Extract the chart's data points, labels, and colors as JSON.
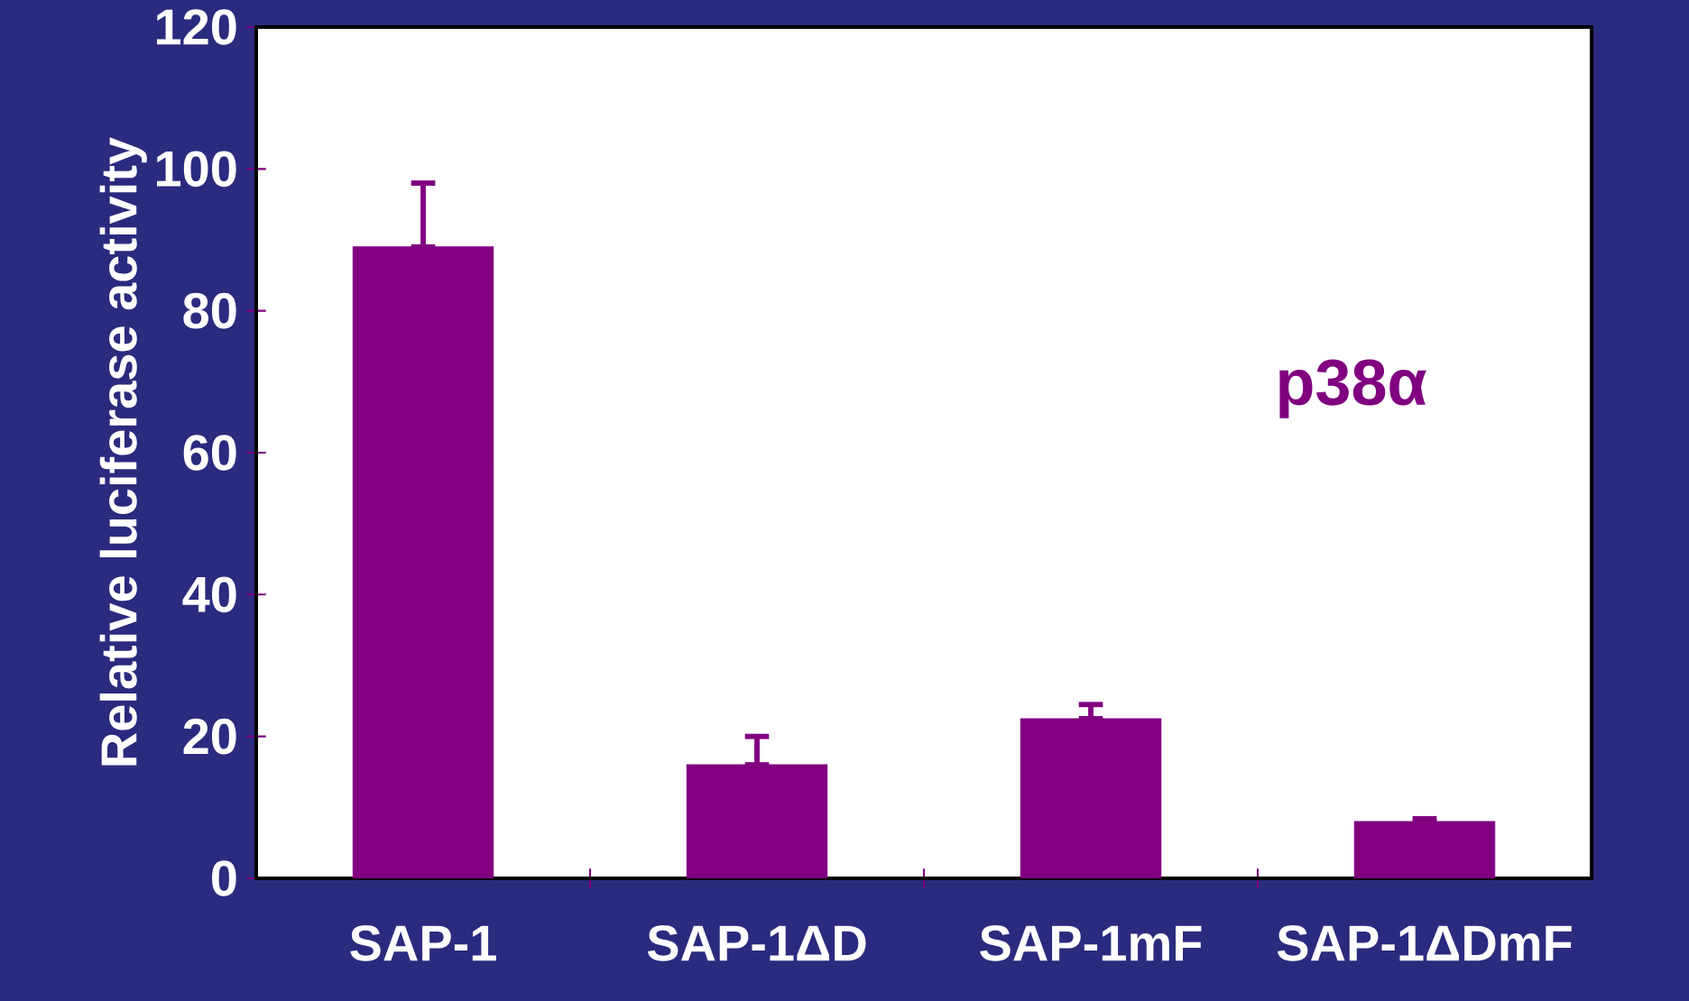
{
  "chart_data": {
    "type": "bar",
    "ylabel": "Relative luciferase activity",
    "categories": [
      "SAP-1",
      "SAP-1ΔD",
      "SAP-1mF",
      "SAP-1ΔDmF"
    ],
    "values": [
      89,
      16,
      22.5,
      8
    ],
    "errors": [
      [
        89,
        98
      ],
      [
        16,
        20
      ],
      [
        22.5,
        24.5
      ],
      [
        8,
        8.4
      ]
    ],
    "color": "#800080",
    "ylim": [
      0,
      120
    ],
    "yticks": [
      0,
      20,
      40,
      60,
      80,
      100,
      120
    ],
    "annotations": [
      "p38α"
    ]
  }
}
